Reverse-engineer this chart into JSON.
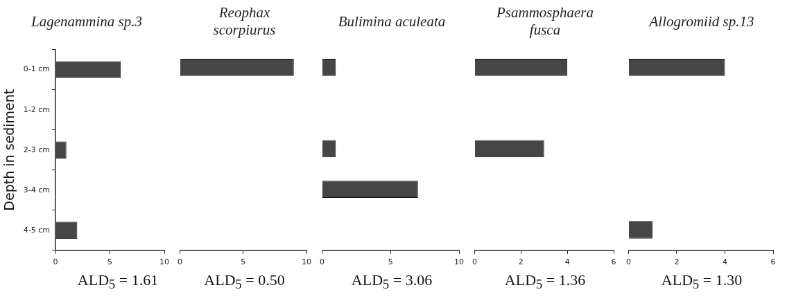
{
  "chart_data": [
    {
      "type": "bar",
      "orientation": "horizontal",
      "title": "Lagenammina sp.3",
      "ylabel": "Depth in sediment",
      "categories": [
        "0-1 cm",
        "1-2 cm",
        "2-3 cm",
        "3-4 cm",
        "4-5 cm"
      ],
      "values": [
        6,
        null,
        1,
        null,
        2
      ],
      "color": "#464646",
      "xlim": [
        0,
        10
      ],
      "xticks": [
        0,
        5,
        10
      ],
      "annotations": [
        "ALD$_{5}$ = 1.61"
      ]
    },
    {
      "type": "bar",
      "orientation": "horizontal",
      "title": "Reophax scorpiurus",
      "categories": [
        null,
        null,
        null,
        null,
        null
      ],
      "values": [
        9,
        null,
        null,
        null,
        null
      ],
      "color": "#464646",
      "xlim": [
        0,
        10
      ],
      "xticks": [
        0,
        5,
        10
      ],
      "tick_labels": "x",
      "annotations": [
        "ALD$_{5}$ = 0.50"
      ]
    },
    {
      "type": "bar",
      "orientation": "horizontal",
      "title": "Bulimina aculeata",
      "categories": [
        null,
        null,
        null,
        null,
        null
      ],
      "values": [
        1,
        null,
        1,
        7,
        null
      ],
      "color": "#464646",
      "xlim": [
        0,
        10
      ],
      "xticks": [
        0,
        5,
        10
      ],
      "tick_labels": "x",
      "annotations": [
        "ALD$_{5}$ = 3.06"
      ]
    },
    {
      "type": "bar",
      "orientation": "horizontal",
      "title": "Psammosphaera fusca",
      "categories": [
        null,
        null,
        null,
        null,
        null
      ],
      "values": [
        4,
        null,
        3,
        null,
        null
      ],
      "color": "#464646",
      "xlim": [
        0,
        6
      ],
      "xticks": [
        0,
        2,
        4,
        6
      ],
      "tick_labels": "x",
      "annotations": [
        "ALD$_{5}$ = 1.36"
      ]
    },
    {
      "type": "bar",
      "orientation": "horizontal",
      "title": "Allogromiid sp.13",
      "categories": [
        null,
        null,
        null,
        null,
        null
      ],
      "values": [
        4,
        null,
        null,
        null,
        1
      ],
      "color": "#464646",
      "xlim": [
        0,
        6
      ],
      "xticks": [
        0,
        2,
        4,
        6
      ],
      "tick_labels": "x",
      "annotations": [
        "ALD$_{5}$ = 1.30"
      ]
    }
  ]
}
